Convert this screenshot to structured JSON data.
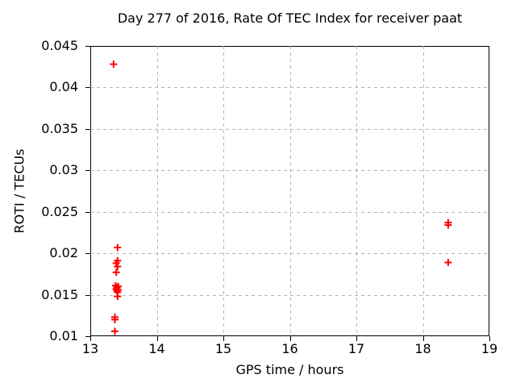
{
  "window": {
    "background": "#ffffff"
  },
  "chart_data": {
    "type": "scatter",
    "title": "Day 277 of 2016, Rate Of TEC Index for receiver paat",
    "xlabel": "GPS time / hours",
    "ylabel": "ROTI / TECUs",
    "xlim": [
      13,
      19
    ],
    "ylim": [
      0.01,
      0.045
    ],
    "xticks": [
      "13",
      "14",
      "15",
      "16",
      "17",
      "18",
      "19"
    ],
    "yticks": [
      "0.01",
      "0.015",
      "0.02",
      "0.025",
      "0.03",
      "0.035",
      "0.04",
      "0.045"
    ],
    "grid": true,
    "grid_style": "dashed",
    "legend_position": "none",
    "marker": "plus",
    "colors": {
      "marker": "#ff0000",
      "grid": "#b4b4b4",
      "axis": "#000000",
      "text": "#000000"
    },
    "series": [
      {
        "name": "ROTI",
        "points": [
          [
            13.35,
            0.0428
          ],
          [
            13.41,
            0.0207
          ],
          [
            13.41,
            0.0191
          ],
          [
            13.39,
            0.0188
          ],
          [
            13.41,
            0.0184
          ],
          [
            13.39,
            0.0177
          ],
          [
            13.38,
            0.0161
          ],
          [
            13.42,
            0.016
          ],
          [
            13.4,
            0.0159
          ],
          [
            13.39,
            0.0157
          ],
          [
            13.42,
            0.0156
          ],
          [
            13.4,
            0.0155
          ],
          [
            13.41,
            0.0153
          ],
          [
            13.41,
            0.0148
          ],
          [
            13.37,
            0.0123
          ],
          [
            13.37,
            0.012
          ],
          [
            13.37,
            0.0106
          ],
          [
            18.38,
            0.0237
          ],
          [
            18.38,
            0.0234
          ],
          [
            18.38,
            0.0189
          ]
        ]
      }
    ]
  }
}
